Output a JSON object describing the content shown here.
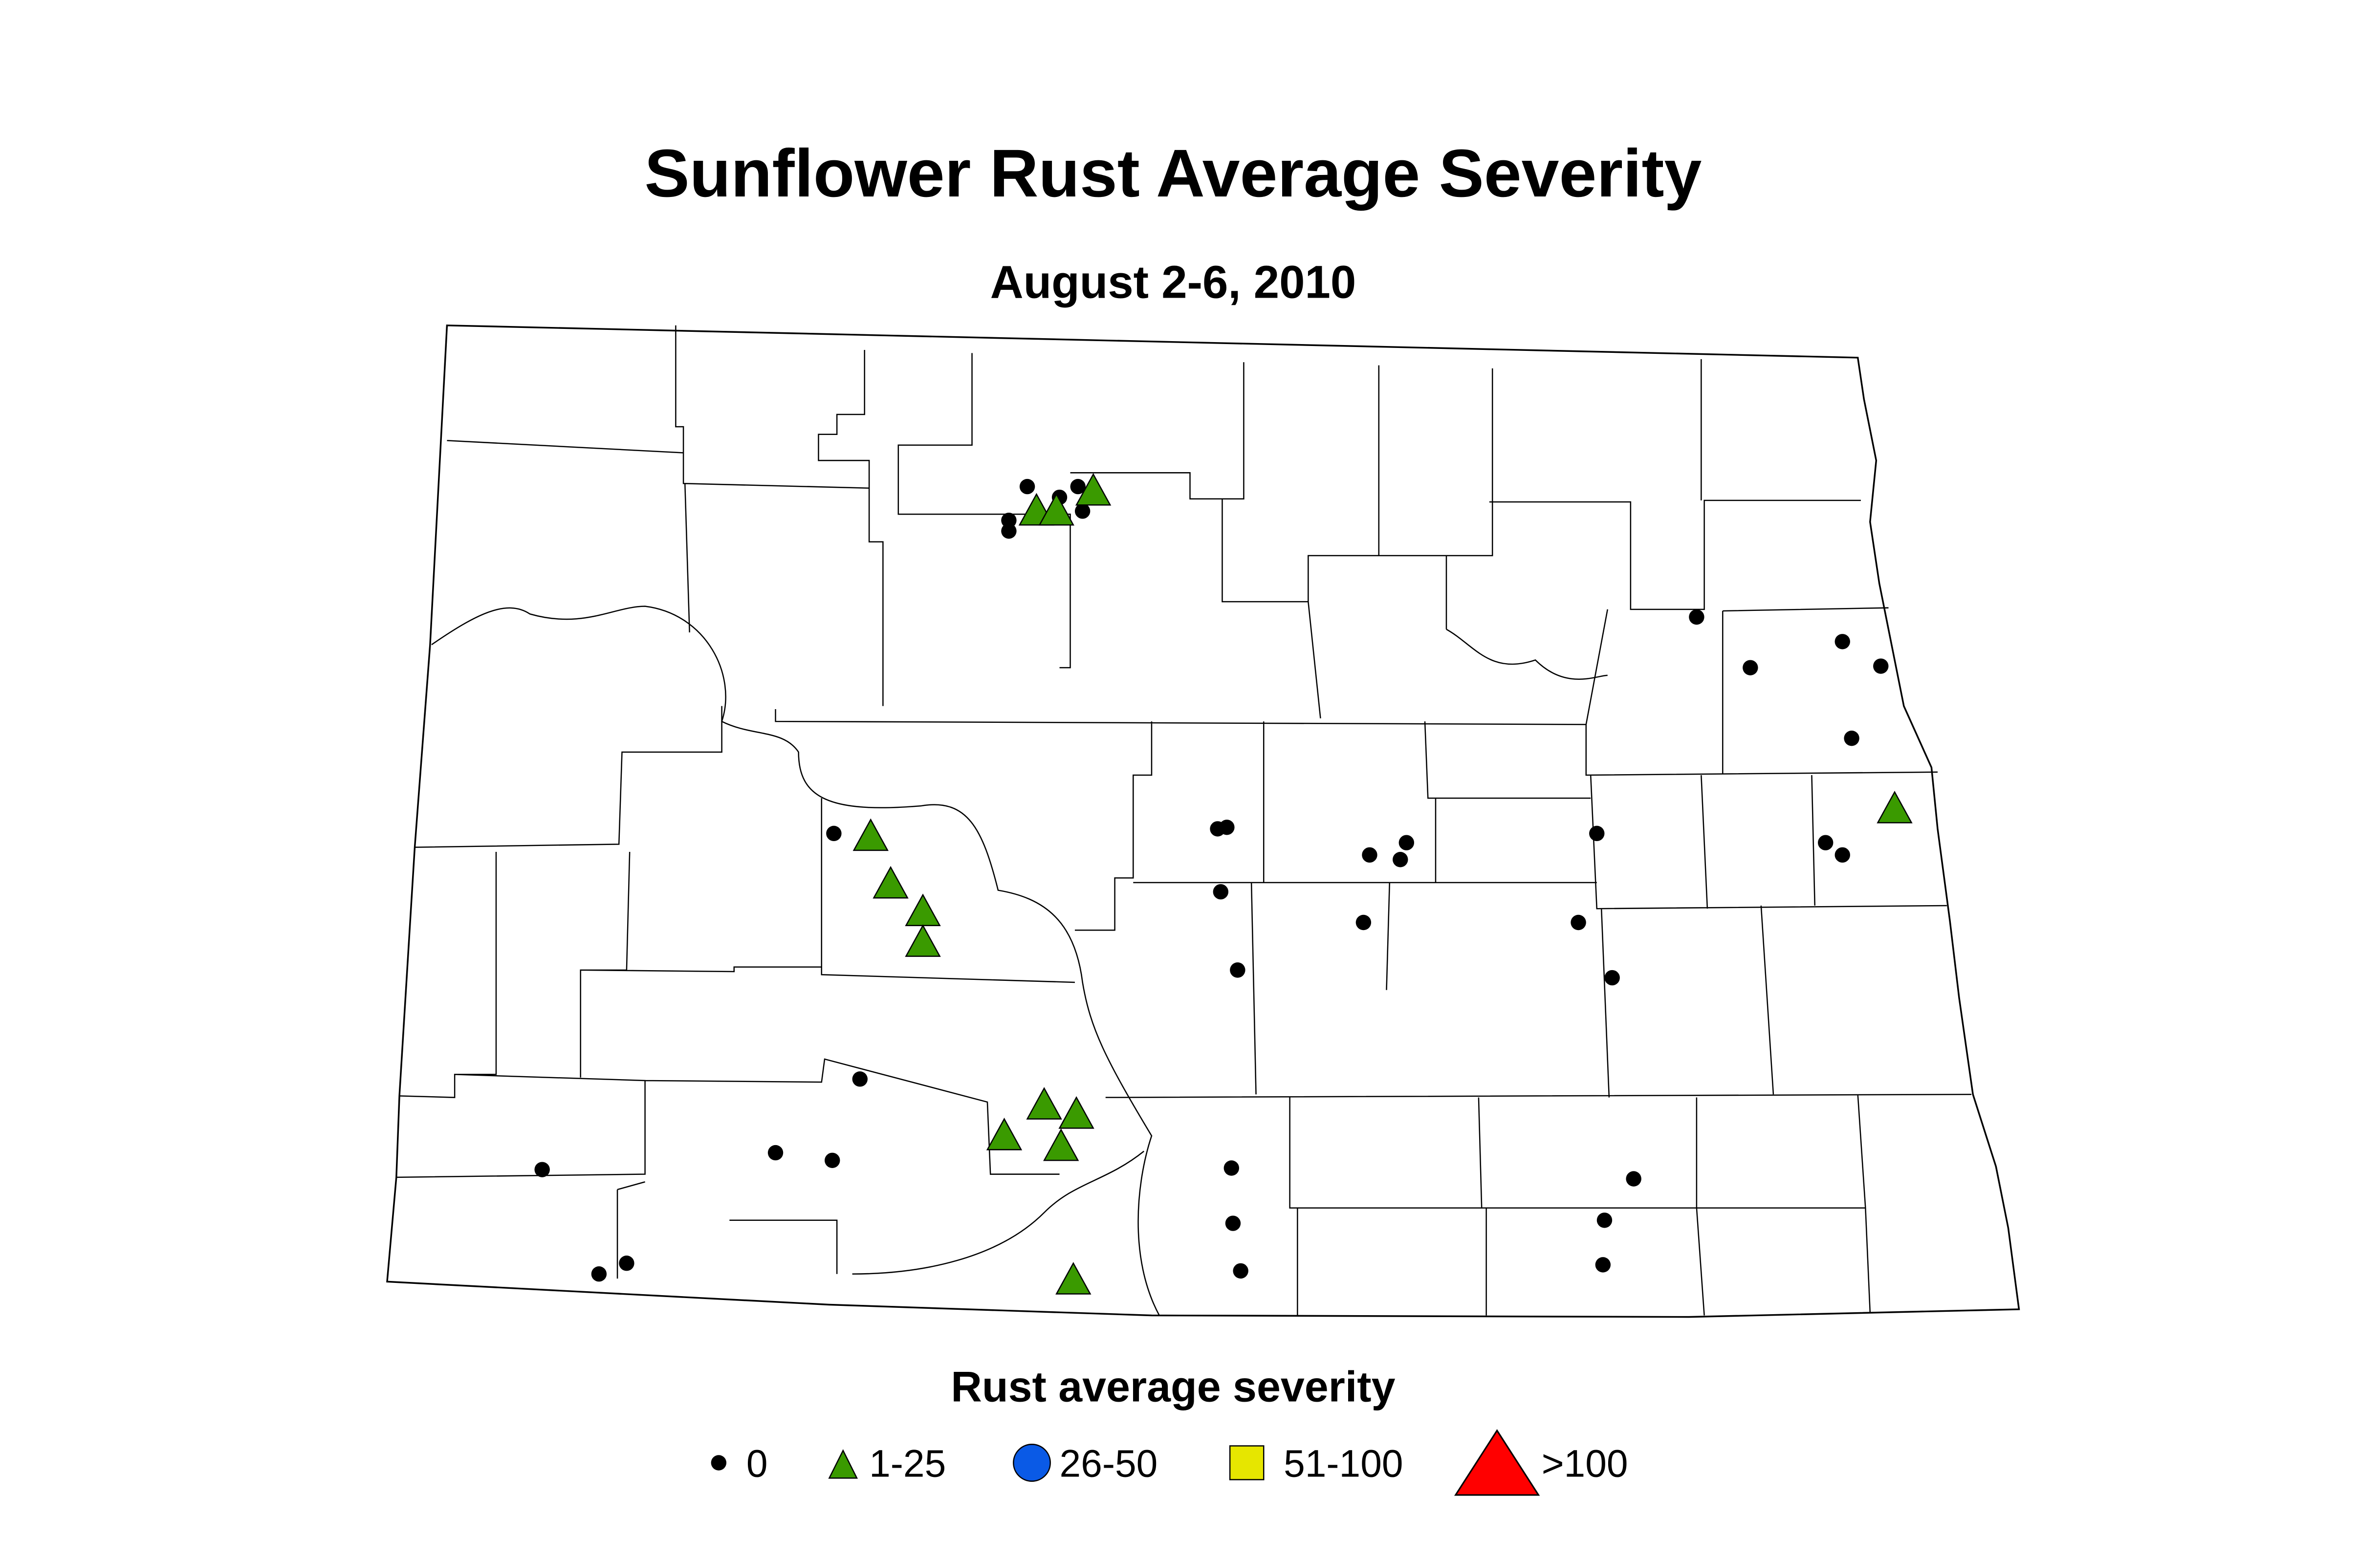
{
  "title": "Sunflower Rust Average Severity",
  "subtitle": "August 2-6, 2010",
  "legend": {
    "title": "Rust average severity",
    "items": [
      {
        "label": "0",
        "color": "#000000"
      },
      {
        "label": "1-25",
        "color": "#3a9a00"
      },
      {
        "label": "26-50",
        "color": "#0a5ae6"
      },
      {
        "label": "51-100",
        "color": "#e6e600"
      },
      {
        "label": ">100",
        "color": "#ff0000"
      }
    ]
  }
}
